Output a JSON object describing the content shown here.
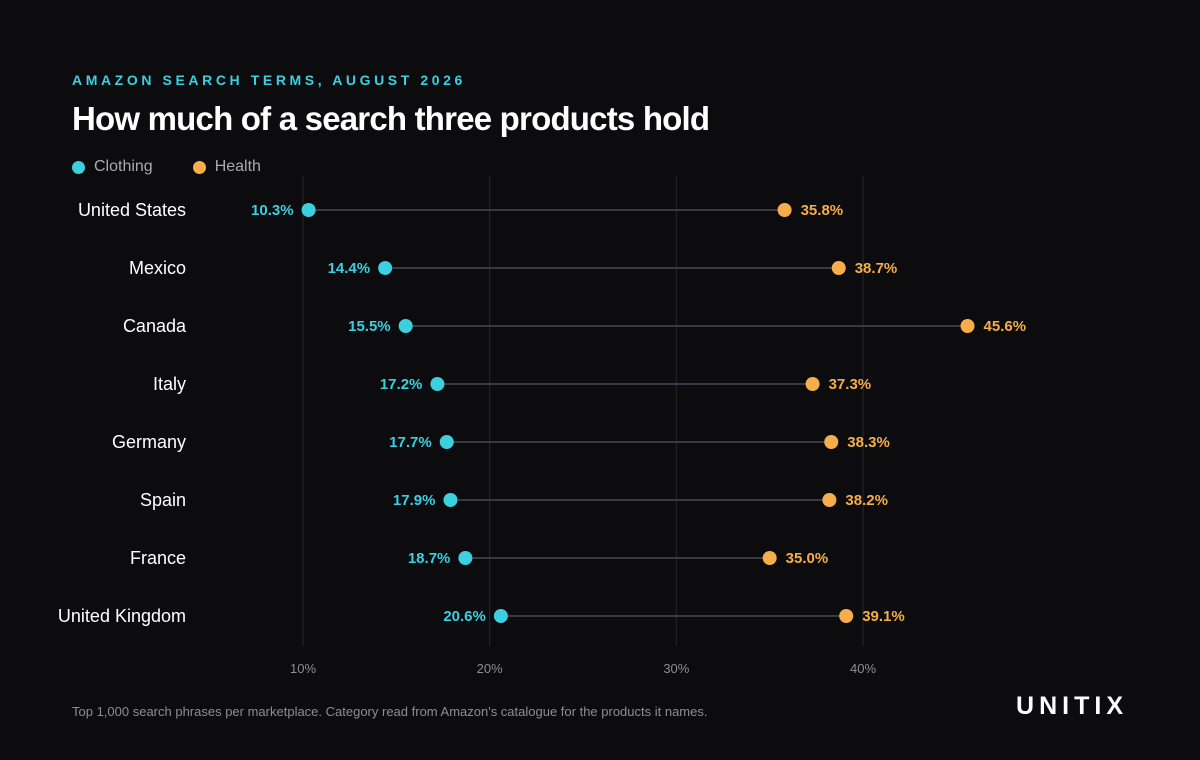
{
  "header": {
    "kicker": "AMAZON SEARCH TERMS, AUGUST 2026",
    "title": "How much of a search three products hold"
  },
  "footer": {
    "note": "Top 1,000 search phrases per marketplace. Category read from Amazon's catalogue for the products it names.",
    "brand": "UNITIX"
  },
  "colors": {
    "clothing": "#3ccfe0",
    "health": "#f7ae4a",
    "background": "#0c0c0e",
    "connector": "#3a3a44",
    "grid": "#26262d"
  },
  "chart_data": {
    "type": "dumbbell",
    "categories": [
      "United States",
      "Mexico",
      "Canada",
      "Italy",
      "Germany",
      "Spain",
      "France",
      "United Kingdom"
    ],
    "series": [
      {
        "name": "Clothing",
        "values": [
          10.3,
          14.4,
          15.5,
          17.2,
          17.7,
          17.9,
          18.7,
          20.6
        ],
        "labels": [
          "10.3%",
          "14.4%",
          "15.5%",
          "17.2%",
          "17.7%",
          "17.9%",
          "18.7%",
          "20.6%"
        ]
      },
      {
        "name": "Health",
        "values": [
          35.8,
          38.7,
          45.6,
          37.3,
          38.3,
          38.2,
          35.0,
          39.1
        ],
        "labels": [
          "35.8%",
          "38.7%",
          "45.6%",
          "37.3%",
          "38.3%",
          "38.2%",
          "35.0%",
          "39.1%"
        ]
      }
    ],
    "xticks": [
      10,
      20,
      30,
      40
    ],
    "xtick_labels": [
      "10%",
      "20%",
      "30%",
      "40%"
    ],
    "xlim": [
      10,
      40
    ],
    "grid": true,
    "legend": "top-left"
  }
}
